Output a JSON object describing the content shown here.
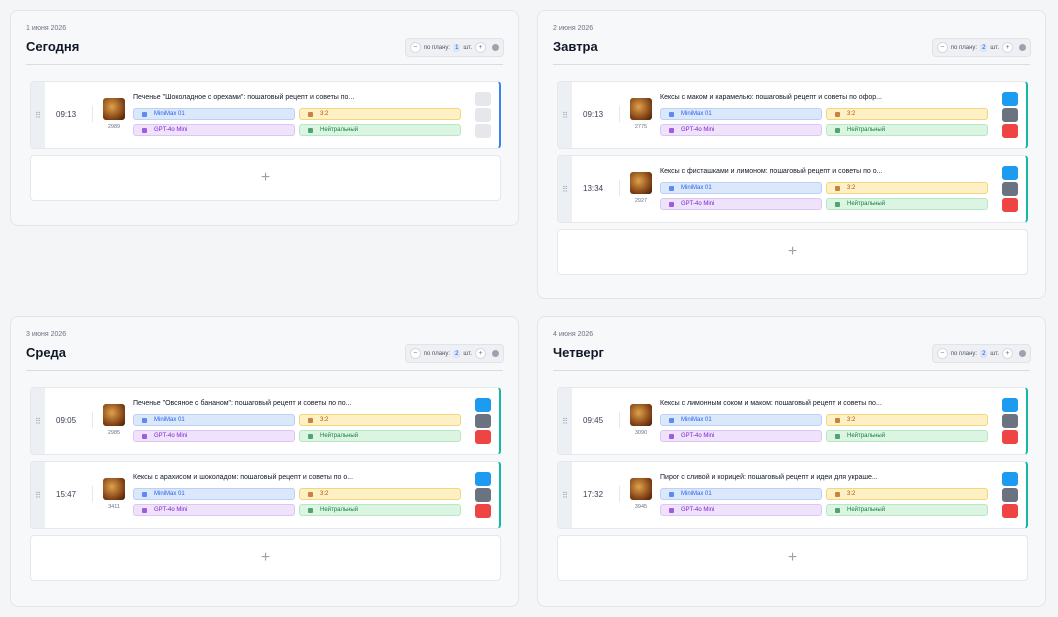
{
  "days": [
    {
      "date": "1 июня 2026",
      "name": "Сегодня",
      "plan_label": "по плану:",
      "plan_count": 1,
      "plan_unit": "шт.",
      "posts": [
        {
          "time": "09:13",
          "title": "Печенье \"Шоколадное с орехами\": пошаговый рецепт и советы по...",
          "views": 2989,
          "image_model": "MiniMax 01",
          "ratio": "3:2",
          "text_model": "GPT-4o Mini",
          "tone": "Нейтральный",
          "disabled": true
        }
      ]
    },
    {
      "date": "2 июня 2026",
      "name": "Завтра",
      "plan_label": "по плану:",
      "plan_count": 2,
      "plan_unit": "шт.",
      "posts": [
        {
          "time": "09:13",
          "title": "Кексы с маком и карамелью: пошаговый рецепт и советы по офор...",
          "views": 2775,
          "image_model": "MiniMax 01",
          "ratio": "3:2",
          "text_model": "GPT-4o Mini",
          "tone": "Нейтральный",
          "disabled": false
        },
        {
          "time": "13:34",
          "title": "Кексы с фисташками и лимоном: пошаговый рецепт и советы по о...",
          "views": 2927,
          "image_model": "MiniMax 01",
          "ratio": "3:2",
          "text_model": "GPT-4o Mini",
          "tone": "Нейтральный",
          "disabled": false
        }
      ]
    },
    {
      "date": "3 июня 2026",
      "name": "Среда",
      "plan_label": "по плану:",
      "plan_count": 2,
      "plan_unit": "шт.",
      "posts": [
        {
          "time": "09:05",
          "title": "Печенье \"Овсяное с бананом\": пошаговый рецепт и советы по по...",
          "views": 2985,
          "image_model": "MiniMax 01",
          "ratio": "3:2",
          "text_model": "GPT-4o Mini",
          "tone": "Нейтральный",
          "disabled": false
        },
        {
          "time": "15:47",
          "title": "Кексы с арахисом и шоколадом: пошаговый рецепт и советы по о...",
          "views": 3411,
          "image_model": "MiniMax 01",
          "ratio": "3:2",
          "text_model": "GPT-4o Mini",
          "tone": "Нейтральный",
          "disabled": false
        }
      ]
    },
    {
      "date": "4 июня 2026",
      "name": "Четверг",
      "plan_label": "по плану:",
      "plan_count": 2,
      "plan_unit": "шт.",
      "posts": [
        {
          "time": "09:45",
          "title": "Кексы с лимонным соком и маком: пошаговый рецепт и советы по...",
          "views": 3090,
          "image_model": "MiniMax 01",
          "ratio": "3:2",
          "text_model": "GPT-4o Mini",
          "tone": "Нейтральный",
          "disabled": false
        },
        {
          "time": "17:32",
          "title": "Пирог с сливой и корицей: пошаговый рецепт и идеи для украше...",
          "views": 3945,
          "image_model": "MiniMax 01",
          "ratio": "3:2",
          "text_model": "GPT-4o Mini",
          "tone": "Нейтральный",
          "disabled": false
        }
      ]
    }
  ]
}
